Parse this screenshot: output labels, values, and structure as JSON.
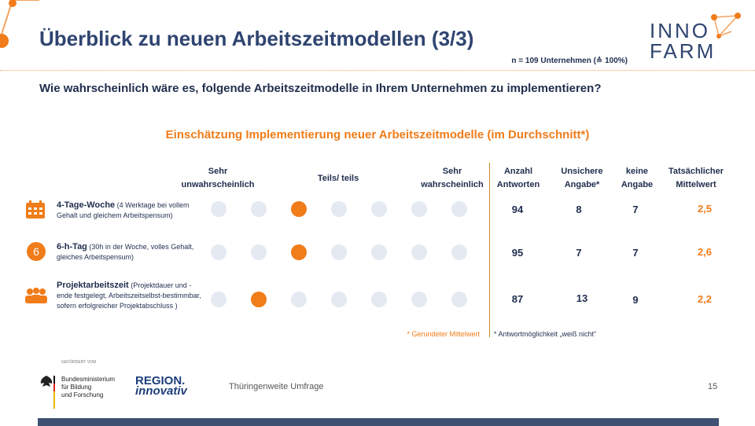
{
  "header": {
    "title": "Überblick zu neuen Arbeitszeitmodellen (3/3)",
    "sample_note": "n = 109 Unternehmen (≙ 100%)",
    "logo_line1": "INNO",
    "logo_line2": "FARM"
  },
  "question": "Wie wahrscheinlich wäre es, folgende Arbeitszeitmodelle in Ihrem Unternehmen zu implementieren?",
  "subtitle": "Einschätzung Implementierung neuer Arbeitszeitmodelle (im Durchschnitt*)",
  "columns": {
    "very_unlikely_1": "Sehr",
    "very_unlikely_2": "unwahrscheinlich",
    "partly": "Teils/ teils",
    "very_likely_1": "Sehr",
    "very_likely_2": "wahrscheinlich",
    "answers_1": "Anzahl",
    "answers_2": "Antworten",
    "unsure_1": "Unsichere",
    "unsure_2": "Angabe*",
    "none_1": "keine",
    "none_2": "Angabe",
    "mean_1": "Tatsächlicher",
    "mean_2": "Mittelwert"
  },
  "rows": [
    {
      "icon": "calendar-icon",
      "title": "4-Tage-Woche",
      "detail": " (4 Werktage bei vollem Gehalt und gleichem Arbeitspensum)",
      "selected_scale_position": 3,
      "answers": "94",
      "unsure": "8",
      "none": "7",
      "mean": "2,5"
    },
    {
      "icon": "number-six-icon",
      "icon_text": "6",
      "title": "6-h-Tag",
      "detail": " (30h in der Woche, volles Gehalt, gleiches Arbeitspensum)",
      "selected_scale_position": 3,
      "answers": "95",
      "unsure": "7",
      "none": "7",
      "mean": "2,6"
    },
    {
      "icon": "group-icon",
      "title": "Projektarbeitszeit",
      "detail": " (Projektdauer und -ende festgelegt, Arbeitszeitselbst-bestimmbar, sofern erfolgreicher Projektabschluss )",
      "selected_scale_position": 2,
      "answers": "87",
      "unsure": "13",
      "none": "9",
      "mean": "2,2"
    }
  ],
  "scale_points": 7,
  "footnotes": {
    "rounded": "* Gerundeter Mittelwert",
    "unsure": "* Antwortmöglichkeit „weiß nicht“"
  },
  "footer": {
    "funded_by": "GEFÖRDERT VOM",
    "bmbf_1": "Bundesministerium",
    "bmbf_2": "für Bildung",
    "bmbf_3": "und Forschung",
    "region_1": "REGION.",
    "region_2": "innovativ",
    "survey": "Thüringenweite Umfrage",
    "page": "15"
  },
  "colors": {
    "accent": "#f07c1a",
    "navy": "#2f4470",
    "circle_empty": "#e4e9f2"
  }
}
